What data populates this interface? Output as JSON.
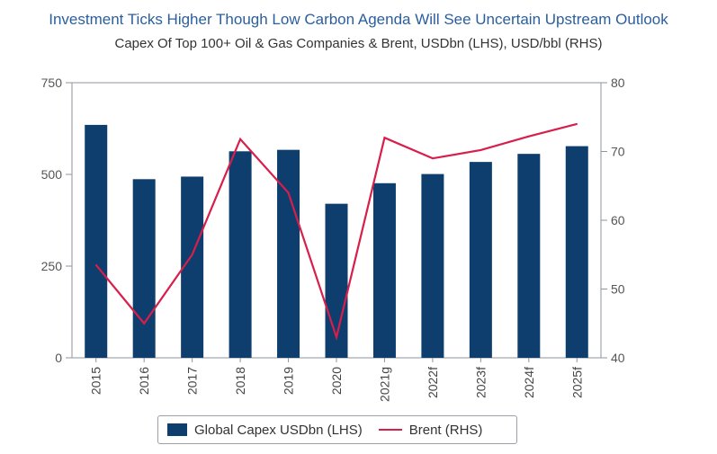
{
  "chart_data": {
    "type": "bar+line",
    "title": "Investment Ticks Higher Though Low Carbon Agenda Will See Uncertain Upstream Outlook",
    "subtitle": "Capex Of Top 100+ Oil & Gas Companies & Brent, USDbn (LHS), USD/bbl (RHS)",
    "categories": [
      "2015",
      "2016",
      "2017",
      "2018",
      "2019",
      "2020",
      "2021g",
      "2022f",
      "2023f",
      "2024f",
      "2025f"
    ],
    "series": [
      {
        "name": "Global Capex USDbn (LHS)",
        "type": "bar",
        "axis": "left",
        "color": "#0d3e6e",
        "values": [
          635,
          487,
          494,
          563,
          567,
          420,
          476,
          501,
          534,
          556,
          577
        ]
      },
      {
        "name": "Brent (RHS)",
        "type": "line",
        "axis": "right",
        "color": "#d81e4a",
        "values": [
          53.5,
          45.0,
          55.0,
          71.8,
          64.0,
          43.0,
          72.0,
          69.0,
          70.2,
          72.2,
          74.0
        ]
      }
    ],
    "y_left": {
      "ticks": [
        "0",
        "250",
        "500",
        "750"
      ],
      "ylim": [
        0,
        750
      ]
    },
    "y_right": {
      "ticks": [
        "40",
        "50",
        "60",
        "70",
        "80"
      ],
      "ylim": [
        40,
        80
      ]
    },
    "legend": "bottom-center",
    "grid": false
  }
}
